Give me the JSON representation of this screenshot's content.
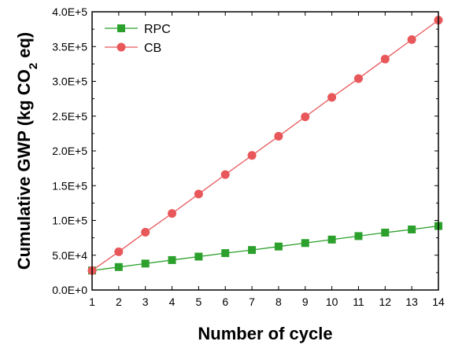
{
  "chart_data": {
    "type": "line",
    "title": "",
    "xlabel": "Number of cycle",
    "ylabel_parts": {
      "before": "Cumulative GWP (kg CO",
      "subscript": "2",
      "after": " eq)"
    },
    "x": [
      1,
      2,
      3,
      4,
      5,
      6,
      7,
      8,
      9,
      10,
      11,
      12,
      13,
      14
    ],
    "xlim": [
      1,
      14
    ],
    "ylim": [
      0,
      400000
    ],
    "xticks": [
      "1",
      "2",
      "3",
      "4",
      "5",
      "6",
      "7",
      "8",
      "9",
      "10",
      "11",
      "12",
      "13",
      "14"
    ],
    "yticks": [
      {
        "value": 0,
        "label": "0.0E+0"
      },
      {
        "value": 50000,
        "label": "5.0E+4"
      },
      {
        "value": 100000,
        "label": "1.0E+5"
      },
      {
        "value": 150000,
        "label": "1.5E+5"
      },
      {
        "value": 200000,
        "label": "2.0E+5"
      },
      {
        "value": 250000,
        "label": "2.5E+5"
      },
      {
        "value": 300000,
        "label": "3.0E+5"
      },
      {
        "value": 350000,
        "label": "3.5E+5"
      },
      {
        "value": 400000,
        "label": "4.0E+5"
      }
    ],
    "grid": false,
    "legend_position": "top-left",
    "series": [
      {
        "name": "RPC",
        "marker": "square",
        "color": "#2ca02c",
        "values": [
          28000,
          33000,
          38000,
          43000,
          48000,
          53000,
          57500,
          62500,
          67500,
          72500,
          77500,
          82500,
          87000,
          92000
        ]
      },
      {
        "name": "CB",
        "marker": "circle",
        "color": "#e8575a",
        "values": [
          28000,
          55000,
          83000,
          110000,
          138000,
          166000,
          193500,
          221000,
          249000,
          277000,
          304000,
          332000,
          360000,
          388000
        ]
      }
    ]
  }
}
